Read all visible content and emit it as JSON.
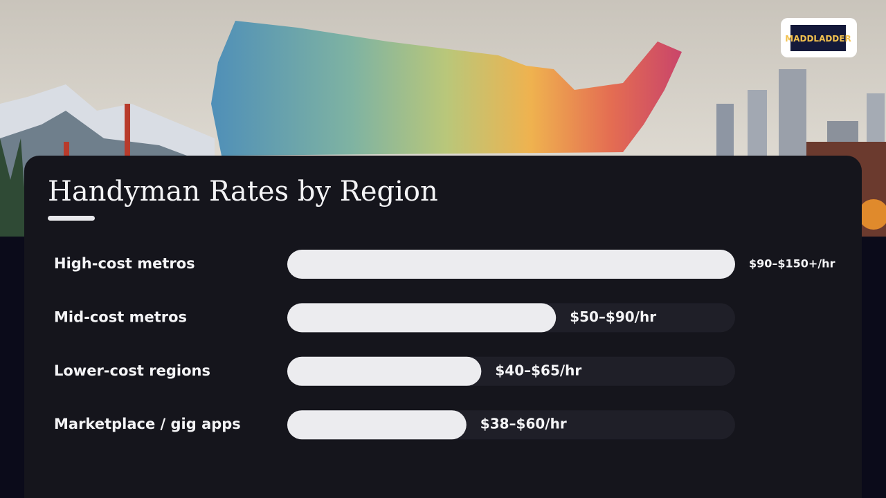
{
  "logo": "MADDLADDER",
  "chart_data": {
    "type": "bar",
    "orientation": "horizontal",
    "title": "Handyman Rates by Region",
    "categories": [
      "High-cost metros",
      "Mid-cost metros",
      "Lower-cost regions",
      "Marketplace / gig apps"
    ],
    "values": [
      150,
      90,
      65,
      60
    ],
    "value_labels": [
      "$90–$150+/hr",
      "$50–$90/hr",
      "$40–$65/hr",
      "$38–$60/hr"
    ],
    "color": "#ececef",
    "xlim": [
      0,
      150
    ]
  }
}
